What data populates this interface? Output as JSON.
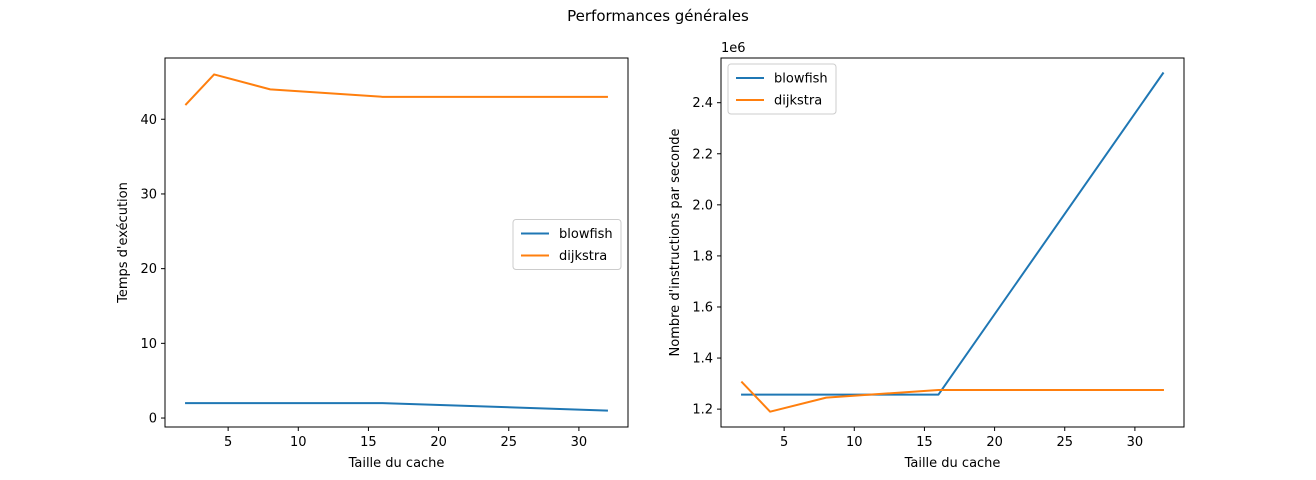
{
  "figure": {
    "suptitle": "Performances générales"
  },
  "chart_data": [
    {
      "type": "line",
      "title": "",
      "xlabel": "Taille du cache",
      "ylabel": "Temps d'exécution",
      "xlim": [
        0.5,
        33.5
      ],
      "ylim": [
        -1.2,
        48.2
      ],
      "xticks": [
        5,
        10,
        15,
        20,
        25,
        30
      ],
      "yticks": [
        0,
        10,
        20,
        30,
        40
      ],
      "offset_label": "",
      "legend": "center-right",
      "grid": false,
      "series": [
        {
          "name": "blowfish",
          "color": "#1f77b4",
          "x": [
            2,
            4,
            8,
            16,
            32
          ],
          "y": [
            2,
            2,
            2,
            2,
            1
          ]
        },
        {
          "name": "dijkstra",
          "color": "#ff7f0e",
          "x": [
            2,
            4,
            8,
            16,
            32
          ],
          "y": [
            42,
            46,
            44,
            43,
            43
          ]
        }
      ]
    },
    {
      "type": "line",
      "title": "",
      "xlabel": "Taille du cache",
      "ylabel": "Nombre d'instructions par seconde",
      "xlim": [
        0.5,
        33.5
      ],
      "ylim": [
        1.13,
        2.575
      ],
      "xticks": [
        5,
        10,
        15,
        20,
        25,
        30
      ],
      "yticks": [
        1.2,
        1.4,
        1.6,
        1.8,
        2.0,
        2.2,
        2.4
      ],
      "offset_label": "1e6",
      "legend": "upper-left",
      "grid": false,
      "series": [
        {
          "name": "blowfish",
          "color": "#1f77b4",
          "x": [
            2,
            4,
            8,
            16,
            32
          ],
          "y": [
            1.257,
            1.257,
            1.257,
            1.257,
            2.515
          ]
        },
        {
          "name": "dijkstra",
          "color": "#ff7f0e",
          "x": [
            2,
            4,
            8,
            16,
            32
          ],
          "y": [
            1.305,
            1.19,
            1.245,
            1.275,
            1.275
          ]
        }
      ]
    }
  ]
}
